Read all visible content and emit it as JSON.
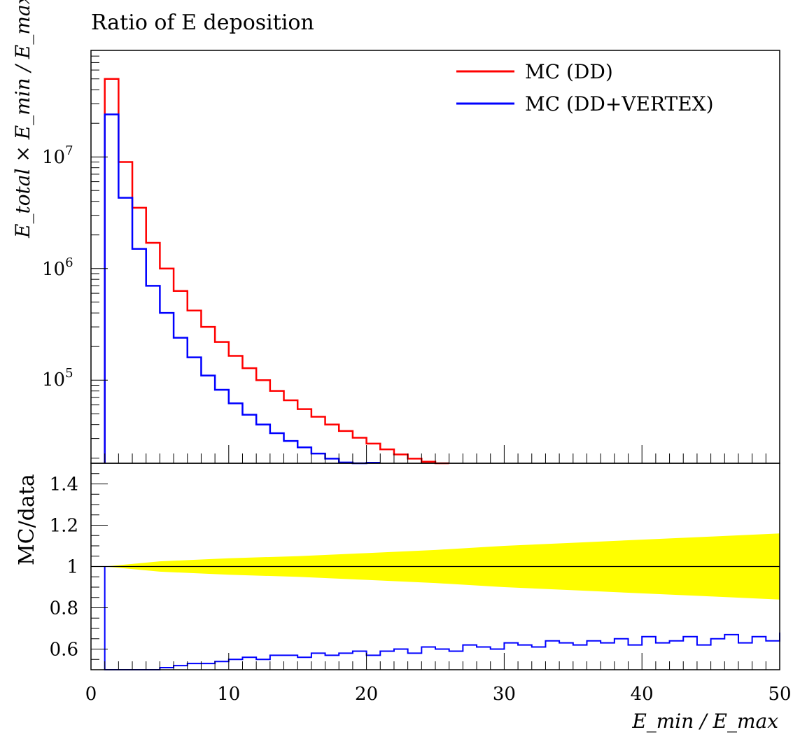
{
  "chart_data": [
    {
      "type": "line",
      "title": "Ratio of E deposition",
      "ylabel": "E_total × E_min / E_max",
      "yscale": "log",
      "xlim": [
        0,
        50
      ],
      "ylim": [
        18000,
        90000000
      ],
      "y_tick_labels": [
        {
          "value": 100000,
          "base": "10",
          "exp": "5"
        },
        {
          "value": 1000000,
          "base": "10",
          "exp": "6"
        },
        {
          "value": 10000000,
          "base": "10",
          "exp": "7"
        }
      ],
      "legend": {
        "placement": "top-right"
      },
      "grid": false,
      "x": [
        1,
        2,
        3,
        4,
        5,
        6,
        7,
        8,
        9,
        10,
        11,
        12,
        13,
        14,
        15,
        16,
        17,
        18,
        19,
        20,
        21,
        22,
        23,
        24,
        25,
        26
      ],
      "series": [
        {
          "name": "MC (DD)",
          "color": "#ff0000",
          "values": [
            50000000,
            9000000,
            3500000,
            1700000,
            1000000,
            630000,
            420000,
            300000,
            220000,
            165000,
            128000,
            100000,
            80000,
            66000,
            55000,
            47000,
            40000,
            35000,
            30500,
            27000,
            24000,
            21600,
            19800,
            18600,
            18000,
            null
          ]
        },
        {
          "name": "MC (DD+VERTEX)",
          "color": "#0000ff",
          "values": [
            24000000,
            4300000,
            1500000,
            700000,
            400000,
            240000,
            160000,
            110000,
            82000,
            62000,
            49000,
            40000,
            33500,
            28500,
            25000,
            22000,
            19800,
            18300,
            17800,
            18200,
            null,
            null,
            null,
            null,
            null,
            null
          ]
        }
      ]
    },
    {
      "type": "line",
      "ylabel": "MC/data",
      "xlabel": "E_min / E_max",
      "xlim": [
        0,
        50
      ],
      "ylim": [
        0.5,
        1.5
      ],
      "x_ticks": [
        "0",
        "10",
        "20",
        "30",
        "40",
        "50"
      ],
      "y_ticks": [
        "0.6",
        "0.8",
        "1",
        "1.2",
        "1.4"
      ],
      "reference_line": 1,
      "band": {
        "color": "#ffff00",
        "x": [
          1,
          5,
          10,
          15,
          20,
          25,
          30,
          35,
          40,
          45,
          50
        ],
        "halfwidth": [
          0.0,
          0.025,
          0.04,
          0.05,
          0.065,
          0.08,
          0.1,
          0.115,
          0.13,
          0.145,
          0.16
        ]
      },
      "series": [
        {
          "name": "MC (DD+VERTEX)",
          "color": "#0000ff",
          "x": [
            1,
            2,
            3,
            4,
            5,
            6,
            7,
            8,
            9,
            10,
            11,
            12,
            13,
            14,
            15,
            16,
            17,
            18,
            19,
            20,
            21,
            22,
            23,
            24,
            25,
            26,
            27,
            28,
            29,
            30,
            31,
            32,
            33,
            34,
            35,
            36,
            37,
            38,
            39,
            40,
            41,
            42,
            43,
            44,
            45,
            46,
            47,
            48,
            49,
            50
          ],
          "values": [
            0.48,
            0.49,
            0.49,
            0.5,
            0.51,
            0.52,
            0.53,
            0.53,
            0.54,
            0.55,
            0.56,
            0.55,
            0.57,
            0.57,
            0.56,
            0.58,
            0.57,
            0.58,
            0.59,
            0.57,
            0.59,
            0.6,
            0.58,
            0.61,
            0.6,
            0.59,
            0.62,
            0.61,
            0.6,
            0.63,
            0.62,
            0.61,
            0.64,
            0.63,
            0.62,
            0.64,
            0.63,
            0.65,
            0.62,
            0.66,
            0.63,
            0.64,
            0.66,
            0.62,
            0.65,
            0.67,
            0.63,
            0.66,
            0.64,
            0.68
          ]
        }
      ]
    }
  ]
}
